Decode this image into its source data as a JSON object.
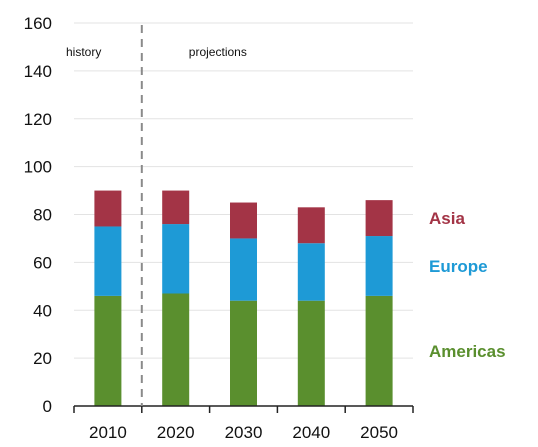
{
  "chart_data": {
    "type": "bar",
    "stacked": true,
    "categories": [
      "2010",
      "2020",
      "2030",
      "2040",
      "2050"
    ],
    "series": [
      {
        "name": "Americas",
        "color": "#5a8f2e",
        "values": [
          46,
          47,
          44,
          44,
          46
        ]
      },
      {
        "name": "Europe",
        "color": "#1e9ad6",
        "values": [
          29,
          29,
          26,
          24,
          25
        ]
      },
      {
        "name": "Asia",
        "color": "#a33446",
        "values": [
          15,
          14,
          15,
          15,
          15
        ]
      }
    ],
    "title": "",
    "xlabel": "",
    "ylabel": "",
    "ylim": [
      0,
      160
    ],
    "yticks": [
      0,
      20,
      40,
      60,
      80,
      100,
      120,
      140,
      160
    ],
    "grid": "horizontal",
    "legend": "right",
    "annotations": {
      "history": "history",
      "projections": "projections"
    }
  }
}
